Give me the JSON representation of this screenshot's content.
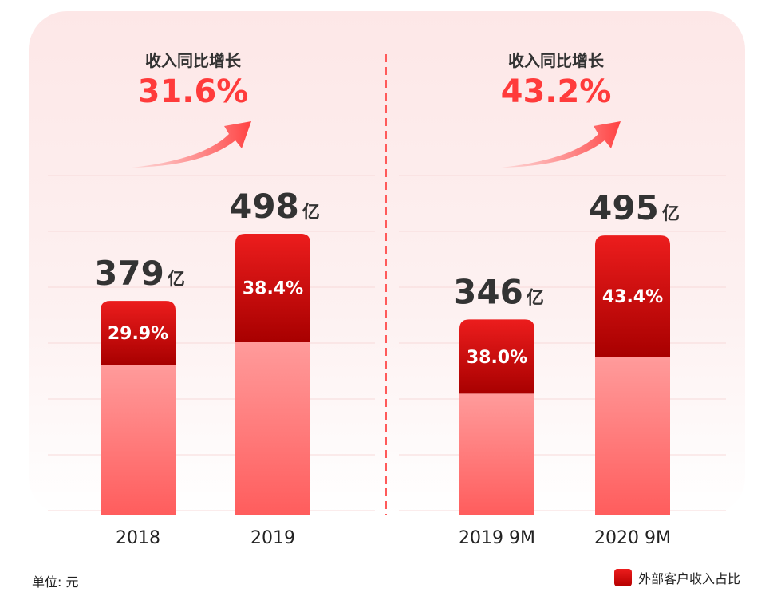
{
  "chart_data": {
    "type": "bar",
    "stacked": true,
    "unit_note": "单位: 元",
    "legend": [
      {
        "name": "外部客户收入占比",
        "color": "#d10000"
      }
    ],
    "groups": [
      {
        "growth_label": "收入同比增长",
        "growth_value": "31.6%",
        "bars": [
          {
            "category": "2018",
            "total": 379,
            "total_text": "379",
            "unit": "亿",
            "share": 29.9,
            "share_text": "29.9%"
          },
          {
            "category": "2019",
            "total": 498,
            "total_text": "498",
            "unit": "亿",
            "share": 38.4,
            "share_text": "38.4%"
          }
        ]
      },
      {
        "growth_label": "收入同比增长",
        "growth_value": "43.2%",
        "bars": [
          {
            "category": "2019 9M",
            "total": 346,
            "total_text": "346",
            "unit": "亿",
            "share": 38.0,
            "share_text": "38.0%"
          },
          {
            "category": "2020 9M",
            "total": 495,
            "total_text": "495",
            "unit": "亿",
            "share": 43.4,
            "share_text": "43.4%"
          }
        ]
      }
    ],
    "colors": {
      "share_top": "#ec1d1d",
      "share_bottom": "#a80000",
      "base_top": "#ff9b9b",
      "base_bottom": "#ff5d5d",
      "growth_text": "#ff3b3b",
      "divider": "#ff5a5a"
    }
  }
}
